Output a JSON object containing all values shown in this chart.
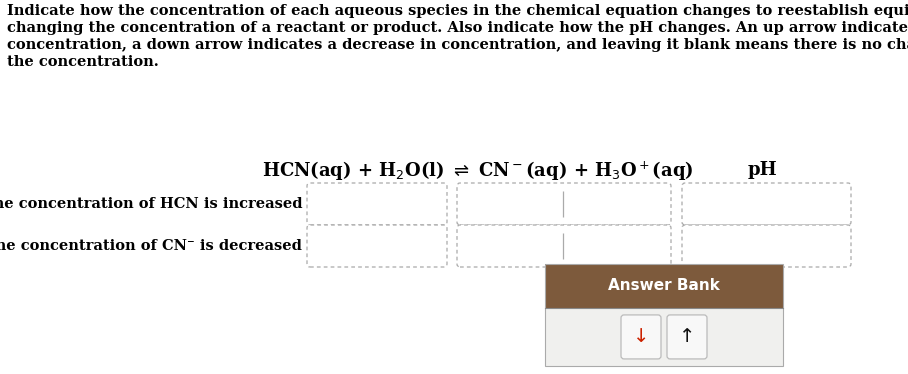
{
  "para_lines": [
    "Indicate how the concentration of each aqueous species in the chemical equation changes to reestablish equilibrium after",
    "changing the concentration of a reactant or product. Also indicate how the pH changes. An up arrow indicates an increase in",
    "concentration, a down arrow indicates a decrease in concentration, and leaving it blank means there is no change in",
    "the concentration."
  ],
  "ph_label": "pH",
  "row1_label": "after the concentration of HCN is increased",
  "row2_label": "after the concentration of CN⁻ is decreased",
  "answer_bank_title": "Answer Bank",
  "arrow_down": "↓",
  "arrow_up": "↑",
  "bg_color": "#ffffff",
  "text_color": "#000000",
  "dashed_border_color": "#aaaaaa",
  "answer_bank_header_color": "#7d5a3c",
  "answer_bank_bg_color": "#f0f0ee",
  "button_bg_color": "#f8f8f8",
  "button_border_color": "#bbbbbb",
  "font_size_para": 10.5,
  "font_size_eq": 13,
  "font_size_label": 10.5,
  "font_size_answer": 11
}
